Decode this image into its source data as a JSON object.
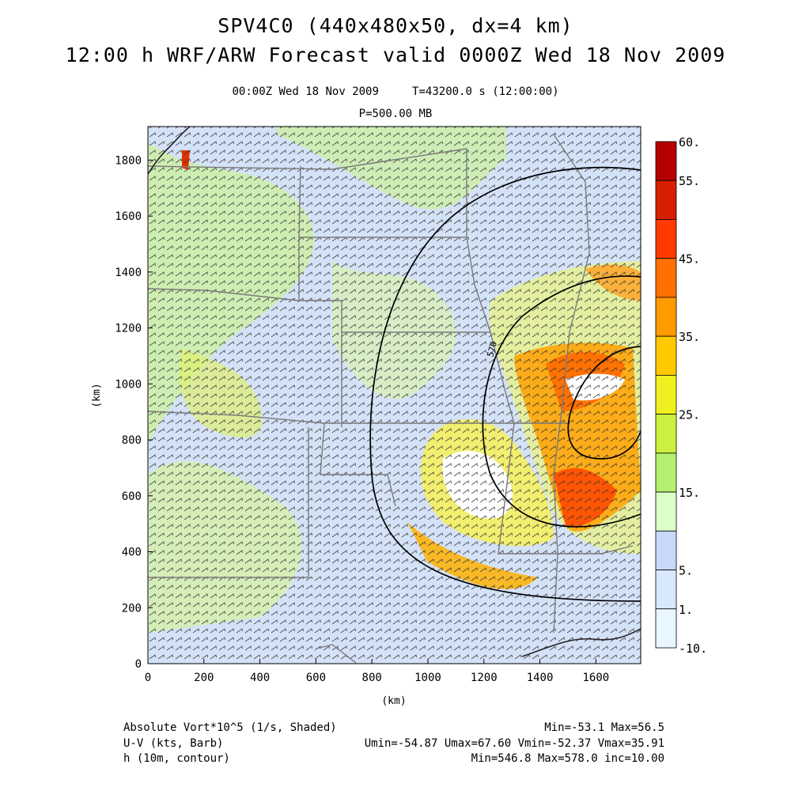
{
  "header": {
    "title1": "SPV4C0 (440x480x50, dx=4 km)",
    "title2": "12:00 h WRF/ARW Forecast valid 0000Z Wed 18 Nov 2009",
    "time_line": "00:00Z Wed 18 Nov 2009     T=43200.0 s (12:00:00)",
    "level": "P=500.00 MB"
  },
  "axes": {
    "xlabel": "(km)",
    "ylabel": "(km)",
    "xticks": [
      "0",
      "200",
      "400",
      "600",
      "800",
      "1000",
      "1200",
      "1400",
      "1600"
    ],
    "yticks": [
      "0",
      "200",
      "400",
      "600",
      "800",
      "1000",
      "1200",
      "1400",
      "1600",
      "1800"
    ],
    "xlim": [
      0,
      1760
    ],
    "ylim": [
      0,
      1920
    ]
  },
  "colorbar": {
    "labels": [
      "60.",
      "55.",
      "45.",
      "35.",
      "25.",
      "15.",
      "5.",
      "1.",
      "-10."
    ],
    "colors": [
      "#b40000",
      "#d81e00",
      "#ff3a00",
      "#ff7000",
      "#ff9a00",
      "#ffc800",
      "#f0f020",
      "#ccf040",
      "#b4f070",
      "#dcffc8",
      "#c8d8f8",
      "#d8e8ff",
      "#e8f6ff"
    ]
  },
  "contour_label": "570",
  "footer": {
    "field1_name": "Absolute Vort*10^5 (1/s, Shaded)",
    "field1_stats": "Min=-53.1 Max=56.5",
    "field2_name": "U-V (kts, Barb)",
    "field2_stats": "Umin=-54.87 Umax=67.60 Vmin=-52.37 Vmax=35.91",
    "field3_name": "h (10m, contour)",
    "field3_stats": "Min=546.8 Max=578.0 inc=10.00"
  }
}
